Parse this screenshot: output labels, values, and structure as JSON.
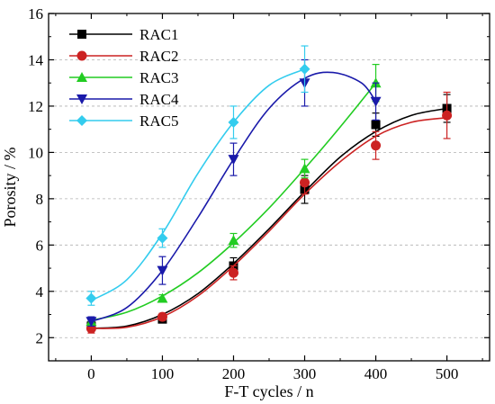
{
  "chart_data": {
    "type": "scatter",
    "title": "",
    "xlabel": "F-T cycles / n",
    "ylabel": "Porosity / %",
    "xlim": [
      -60,
      560
    ],
    "ylim": [
      1,
      16
    ],
    "xticks": [
      0,
      100,
      200,
      300,
      400,
      500
    ],
    "yticks": [
      2,
      4,
      6,
      8,
      10,
      12,
      14,
      16
    ],
    "grid": "horizontal dashed",
    "legend_position": "top-left",
    "series": [
      {
        "name": "RAC1",
        "color": "#000000",
        "marker": "square",
        "x": [
          0,
          100,
          200,
          300,
          400,
          500
        ],
        "y": [
          2.5,
          2.8,
          5.1,
          8.4,
          11.2,
          11.9
        ],
        "error": [
          0.2,
          0.15,
          0.35,
          0.6,
          0.5,
          0.6
        ],
        "fit_x": [
          0,
          50,
          100,
          150,
          200,
          250,
          300,
          350,
          400,
          450,
          500
        ],
        "fit_y": [
          2.4,
          2.5,
          3.0,
          3.9,
          5.2,
          6.7,
          8.3,
          9.8,
          10.9,
          11.6,
          11.9
        ]
      },
      {
        "name": "RAC2",
        "color": "#cc2222",
        "marker": "circle",
        "x": [
          0,
          100,
          200,
          300,
          400,
          500
        ],
        "y": [
          2.4,
          2.9,
          4.8,
          8.7,
          10.3,
          11.6
        ],
        "error": [
          0.2,
          0.15,
          0.3,
          0.5,
          0.6,
          1.0
        ],
        "fit_x": [
          0,
          50,
          100,
          150,
          200,
          250,
          300,
          350,
          400,
          450,
          500
        ],
        "fit_y": [
          2.4,
          2.45,
          2.9,
          3.8,
          5.1,
          6.6,
          8.2,
          9.6,
          10.7,
          11.3,
          11.5
        ]
      },
      {
        "name": "RAC3",
        "color": "#22cc22",
        "marker": "triangle-up",
        "x": [
          0,
          100,
          200,
          300,
          400
        ],
        "y": [
          2.7,
          3.7,
          6.2,
          9.3,
          13.0
        ],
        "error": [
          0.15,
          0.15,
          0.3,
          0.4,
          0.8
        ],
        "fit_x": [
          0,
          50,
          100,
          150,
          200,
          250,
          300,
          350,
          400
        ],
        "fit_y": [
          2.75,
          3.1,
          3.8,
          4.8,
          6.1,
          7.6,
          9.3,
          11.1,
          13.0
        ]
      },
      {
        "name": "RAC4",
        "color": "#1a1aaa",
        "marker": "triangle-down",
        "x": [
          0,
          100,
          200,
          300,
          400
        ],
        "y": [
          2.7,
          4.9,
          9.7,
          13.0,
          12.2
        ],
        "error": [
          0.2,
          0.6,
          0.7,
          1.0,
          0.8
        ],
        "fit_x": [
          0,
          50,
          100,
          150,
          200,
          250,
          300,
          340,
          380,
          400
        ],
        "fit_y": [
          2.7,
          3.3,
          4.9,
          7.2,
          9.7,
          11.9,
          13.2,
          13.45,
          13.0,
          12.2
        ]
      },
      {
        "name": "RAC5",
        "color": "#33ccee",
        "marker": "diamond",
        "x": [
          0,
          100,
          200,
          300
        ],
        "y": [
          3.7,
          6.3,
          11.3,
          13.6
        ],
        "error": [
          0.3,
          0.4,
          0.7,
          1.0
        ],
        "fit_x": [
          0,
          50,
          100,
          150,
          200,
          250,
          300
        ],
        "fit_y": [
          3.6,
          4.5,
          6.5,
          9.1,
          11.3,
          12.9,
          13.6
        ]
      }
    ]
  }
}
